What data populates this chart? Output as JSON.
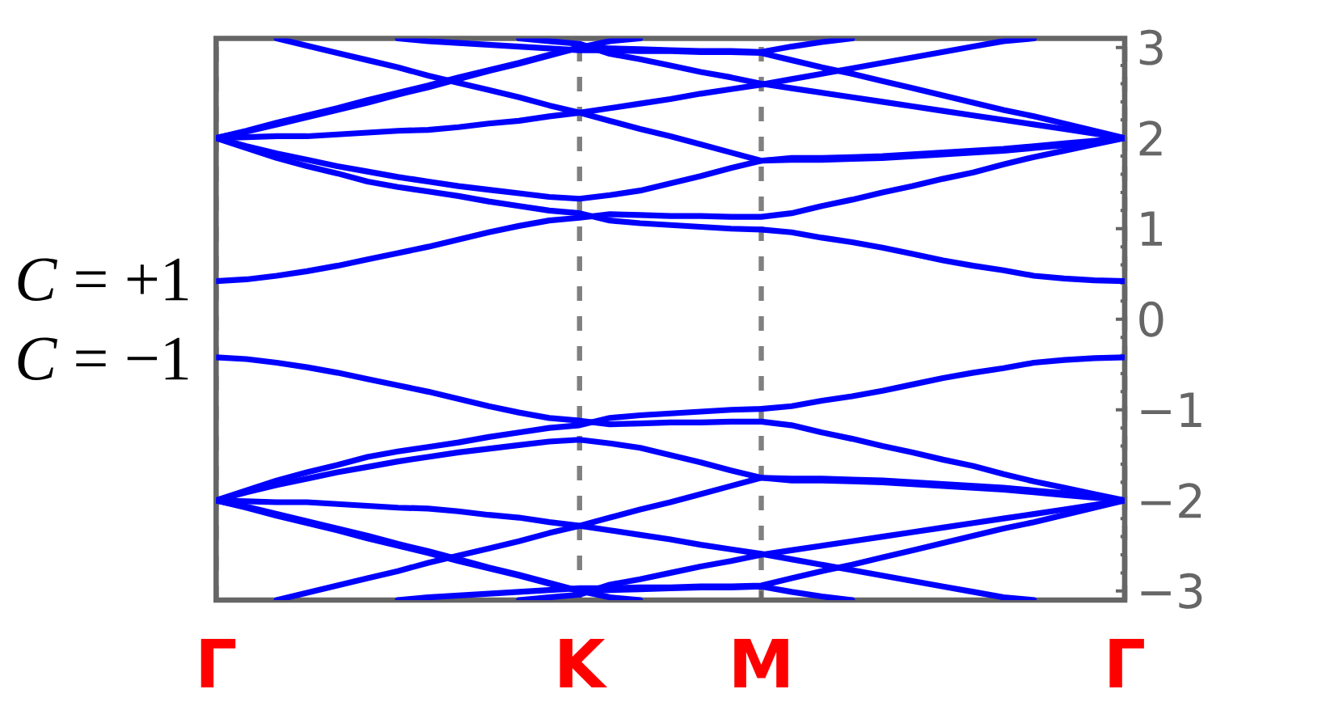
{
  "chart_data": {
    "type": "line",
    "ylim": [
      -3.1,
      3.1
    ],
    "grid": "x",
    "categories": [
      "Γ",
      null,
      null,
      null,
      null,
      null,
      null,
      null,
      null,
      null,
      null,
      null,
      "K",
      null,
      null,
      null,
      null,
      null,
      "M",
      null,
      null,
      null,
      null,
      null,
      null,
      null,
      null,
      null,
      null,
      null,
      "Γ"
    ],
    "yticks": [
      3,
      {
        "value": 2.8,
        "label": null
      },
      {
        "value": 2.6,
        "label": null
      },
      {
        "value": 2.4,
        "label": null
      },
      {
        "value": 2.2,
        "label": null
      },
      2,
      {
        "value": 1.8,
        "label": null
      },
      {
        "value": 1.6,
        "label": null
      },
      {
        "value": 1.4,
        "label": null
      },
      {
        "value": 1.2,
        "label": null
      },
      1,
      {
        "value": 0.8,
        "label": null
      },
      {
        "value": 0.6,
        "label": null
      },
      {
        "value": 0.4,
        "label": null
      },
      {
        "value": 0.2,
        "label": null
      },
      0,
      {
        "value": -0.2,
        "label": null
      },
      {
        "value": -0.4,
        "label": null
      },
      {
        "value": -0.6,
        "label": null
      },
      {
        "value": -0.8,
        "label": null
      },
      {
        "value": -1,
        "label": "−1"
      },
      {
        "value": -1.2,
        "label": null
      },
      {
        "value": -1.4,
        "label": null
      },
      {
        "value": -1.6,
        "label": null
      },
      {
        "value": -1.8,
        "label": null
      },
      {
        "value": -2,
        "label": "−2"
      },
      {
        "value": -2.2,
        "label": null
      },
      {
        "value": -2.4,
        "label": null
      },
      {
        "value": -2.6,
        "label": null
      },
      {
        "value": -2.8,
        "label": null
      },
      {
        "value": -3,
        "label": "−3"
      }
    ],
    "annotations": [
      "*C* = +1",
      "*C* = −1"
    ],
    "series": [
      {
        "color": "#0000ff",
        "values": [
          0.42,
          0.44,
          0.48,
          0.53,
          0.59,
          0.66,
          0.73,
          0.8,
          0.88,
          0.96,
          1.03,
          1.09,
          1.12,
          1.16,
          1.15,
          1.14,
          1.14,
          1.13,
          1.13,
          1.17,
          1.25,
          1.32,
          1.4,
          1.47,
          1.55,
          1.62,
          1.71,
          1.79,
          1.86,
          1.93,
          2.0
        ]
      },
      {
        "color": "#0000ff",
        "values": [
          2.0,
          1.89,
          1.78,
          1.69,
          1.61,
          1.52,
          1.46,
          1.41,
          1.36,
          1.3,
          1.25,
          1.2,
          1.17,
          1.09,
          1.06,
          1.04,
          1.02,
          1.0,
          0.99,
          0.96,
          0.9,
          0.85,
          0.79,
          0.72,
          0.65,
          0.59,
          0.54,
          0.48,
          0.45,
          0.43,
          0.42
        ]
      },
      {
        "color": "#0000ff",
        "values": [
          2.0,
          1.91,
          1.83,
          1.76,
          1.69,
          1.63,
          1.57,
          1.52,
          1.47,
          1.43,
          1.39,
          1.35,
          1.33,
          1.37,
          1.42,
          1.5,
          1.58,
          1.67,
          1.75,
          1.76,
          1.76,
          1.77,
          1.78,
          1.8,
          1.82,
          1.84,
          1.86,
          1.89,
          1.92,
          1.96,
          2.0
        ]
      },
      {
        "color": "#0000ff",
        "values": [
          null,
          null,
          3.1,
          3.02,
          2.94,
          2.86,
          2.78,
          2.69,
          2.61,
          2.53,
          2.45,
          2.36,
          2.28,
          2.19,
          2.1,
          2.02,
          1.93,
          1.84,
          1.75,
          1.78,
          1.78,
          1.79,
          1.8,
          1.82,
          1.84,
          1.86,
          1.88,
          1.91,
          1.94,
          1.97,
          2.0
        ]
      },
      {
        "color": "#0000ff",
        "values": [
          2.0,
          2.01,
          2.02,
          2.02,
          2.04,
          2.06,
          2.08,
          2.09,
          2.12,
          2.16,
          2.19,
          2.24,
          2.28,
          2.33,
          2.38,
          2.43,
          2.49,
          2.54,
          2.59,
          2.65,
          2.71,
          2.77,
          2.83,
          2.89,
          2.95,
          3.01,
          3.07,
          3.1,
          null,
          null,
          null
        ]
      },
      {
        "color": "#0000ff",
        "values": [
          null,
          null,
          null,
          null,
          null,
          null,
          3.1,
          3.07,
          3.05,
          3.03,
          3.01,
          2.99,
          2.97,
          2.97,
          2.96,
          2.96,
          2.95,
          2.95,
          2.94,
          2.86,
          2.78,
          2.71,
          2.63,
          2.55,
          2.47,
          2.39,
          2.31,
          2.24,
          2.16,
          2.08,
          2.0
        ]
      },
      {
        "color": "#0000ff",
        "values": [
          2.0,
          2.08,
          2.17,
          2.25,
          2.33,
          2.42,
          2.5,
          2.58,
          2.67,
          2.75,
          2.83,
          2.92,
          3.0,
          3.07,
          3.1,
          null,
          null,
          null,
          null,
          null,
          null,
          null,
          null,
          null,
          null,
          null,
          null,
          null,
          null,
          null,
          null
        ]
      },
      {
        "color": "#0000ff",
        "values": [
          2.0,
          2.07,
          2.15,
          2.23,
          2.31,
          2.39,
          2.48,
          2.56,
          2.65,
          2.74,
          2.82,
          2.91,
          3.0,
          2.99,
          2.98,
          2.97,
          2.96,
          2.96,
          2.95,
          3.01,
          3.06,
          3.1,
          null,
          null,
          null,
          null,
          null,
          null,
          null,
          null,
          null
        ]
      },
      {
        "color": "#0000ff",
        "values": [
          null,
          null,
          null,
          null,
          null,
          null,
          null,
          null,
          null,
          null,
          3.1,
          3.07,
          3.04,
          2.93,
          2.87,
          2.8,
          2.73,
          2.67,
          2.6,
          2.55,
          2.5,
          2.45,
          2.4,
          2.35,
          2.3,
          2.25,
          2.2,
          2.15,
          2.1,
          2.05,
          2.0
        ]
      },
      {
        "color": "#0000ff",
        "values": [
          -0.42,
          -0.44,
          -0.48,
          -0.53,
          -0.59,
          -0.66,
          -0.73,
          -0.8,
          -0.88,
          -0.96,
          -1.03,
          -1.09,
          -1.12,
          -1.16,
          -1.15,
          -1.14,
          -1.14,
          -1.13,
          -1.13,
          -1.17,
          -1.25,
          -1.32,
          -1.4,
          -1.47,
          -1.55,
          -1.62,
          -1.71,
          -1.79,
          -1.86,
          -1.93,
          -2.0
        ]
      },
      {
        "color": "#0000ff",
        "values": [
          -2.0,
          -1.89,
          -1.78,
          -1.69,
          -1.61,
          -1.52,
          -1.46,
          -1.41,
          -1.36,
          -1.3,
          -1.25,
          -1.2,
          -1.17,
          -1.09,
          -1.06,
          -1.04,
          -1.02,
          -1.0,
          -0.99,
          -0.96,
          -0.9,
          -0.85,
          -0.79,
          -0.72,
          -0.65,
          -0.59,
          -0.54,
          -0.48,
          -0.45,
          -0.43,
          -0.42
        ]
      },
      {
        "color": "#0000ff",
        "values": [
          -2.0,
          -1.91,
          -1.83,
          -1.76,
          -1.69,
          -1.63,
          -1.57,
          -1.52,
          -1.47,
          -1.43,
          -1.39,
          -1.35,
          -1.33,
          -1.37,
          -1.42,
          -1.5,
          -1.58,
          -1.67,
          -1.75,
          -1.76,
          -1.76,
          -1.77,
          -1.78,
          -1.8,
          -1.82,
          -1.84,
          -1.86,
          -1.89,
          -1.92,
          -1.96,
          -2.0
        ]
      },
      {
        "color": "#0000ff",
        "values": [
          null,
          null,
          -3.1,
          -3.02,
          -2.94,
          -2.86,
          -2.78,
          -2.69,
          -2.61,
          -2.53,
          -2.45,
          -2.36,
          -2.28,
          -2.19,
          -2.1,
          -2.02,
          -1.93,
          -1.84,
          -1.75,
          -1.78,
          -1.78,
          -1.79,
          -1.8,
          -1.82,
          -1.84,
          -1.86,
          -1.88,
          -1.91,
          -1.94,
          -1.97,
          -2.0
        ]
      },
      {
        "color": "#0000ff",
        "values": [
          -2.0,
          -2.01,
          -2.02,
          -2.02,
          -2.04,
          -2.06,
          -2.08,
          -2.09,
          -2.12,
          -2.16,
          -2.19,
          -2.24,
          -2.28,
          -2.33,
          -2.38,
          -2.43,
          -2.49,
          -2.54,
          -2.59,
          -2.65,
          -2.71,
          -2.77,
          -2.83,
          -2.89,
          -2.95,
          -3.01,
          -3.07,
          -3.1,
          null,
          null,
          null
        ]
      },
      {
        "color": "#0000ff",
        "values": [
          null,
          null,
          null,
          null,
          null,
          null,
          -3.1,
          -3.07,
          -3.05,
          -3.03,
          -3.01,
          -2.99,
          -2.97,
          -2.97,
          -2.96,
          -2.96,
          -2.95,
          -2.95,
          -2.94,
          -2.86,
          -2.78,
          -2.71,
          -2.63,
          -2.55,
          -2.47,
          -2.39,
          -2.31,
          -2.24,
          -2.16,
          -2.08,
          -2.0
        ]
      },
      {
        "color": "#0000ff",
        "values": [
          -2.0,
          -2.08,
          -2.17,
          -2.25,
          -2.33,
          -2.42,
          -2.5,
          -2.58,
          -2.67,
          -2.75,
          -2.83,
          -2.92,
          -3.0,
          -3.07,
          -3.1,
          null,
          null,
          null,
          null,
          null,
          null,
          null,
          null,
          null,
          null,
          null,
          null,
          null,
          null,
          null,
          null
        ]
      },
      {
        "color": "#0000ff",
        "values": [
          -2.0,
          -2.07,
          -2.15,
          -2.23,
          -2.31,
          -2.39,
          -2.48,
          -2.56,
          -2.65,
          -2.74,
          -2.82,
          -2.91,
          -3.0,
          -2.99,
          -2.98,
          -2.97,
          -2.96,
          -2.96,
          -2.95,
          -3.01,
          -3.06,
          -3.1,
          null,
          null,
          null,
          null,
          null,
          null,
          null,
          null,
          null
        ]
      },
      {
        "color": "#0000ff",
        "values": [
          null,
          null,
          null,
          null,
          null,
          null,
          null,
          null,
          null,
          null,
          -3.1,
          -3.07,
          -3.04,
          -2.93,
          -2.87,
          -2.8,
          -2.73,
          -2.67,
          -2.6,
          -2.55,
          -2.5,
          -2.45,
          -2.4,
          -2.35,
          -2.3,
          -2.25,
          -2.2,
          -2.15,
          -2.1,
          -2.05,
          -2.0
        ]
      }
    ]
  }
}
